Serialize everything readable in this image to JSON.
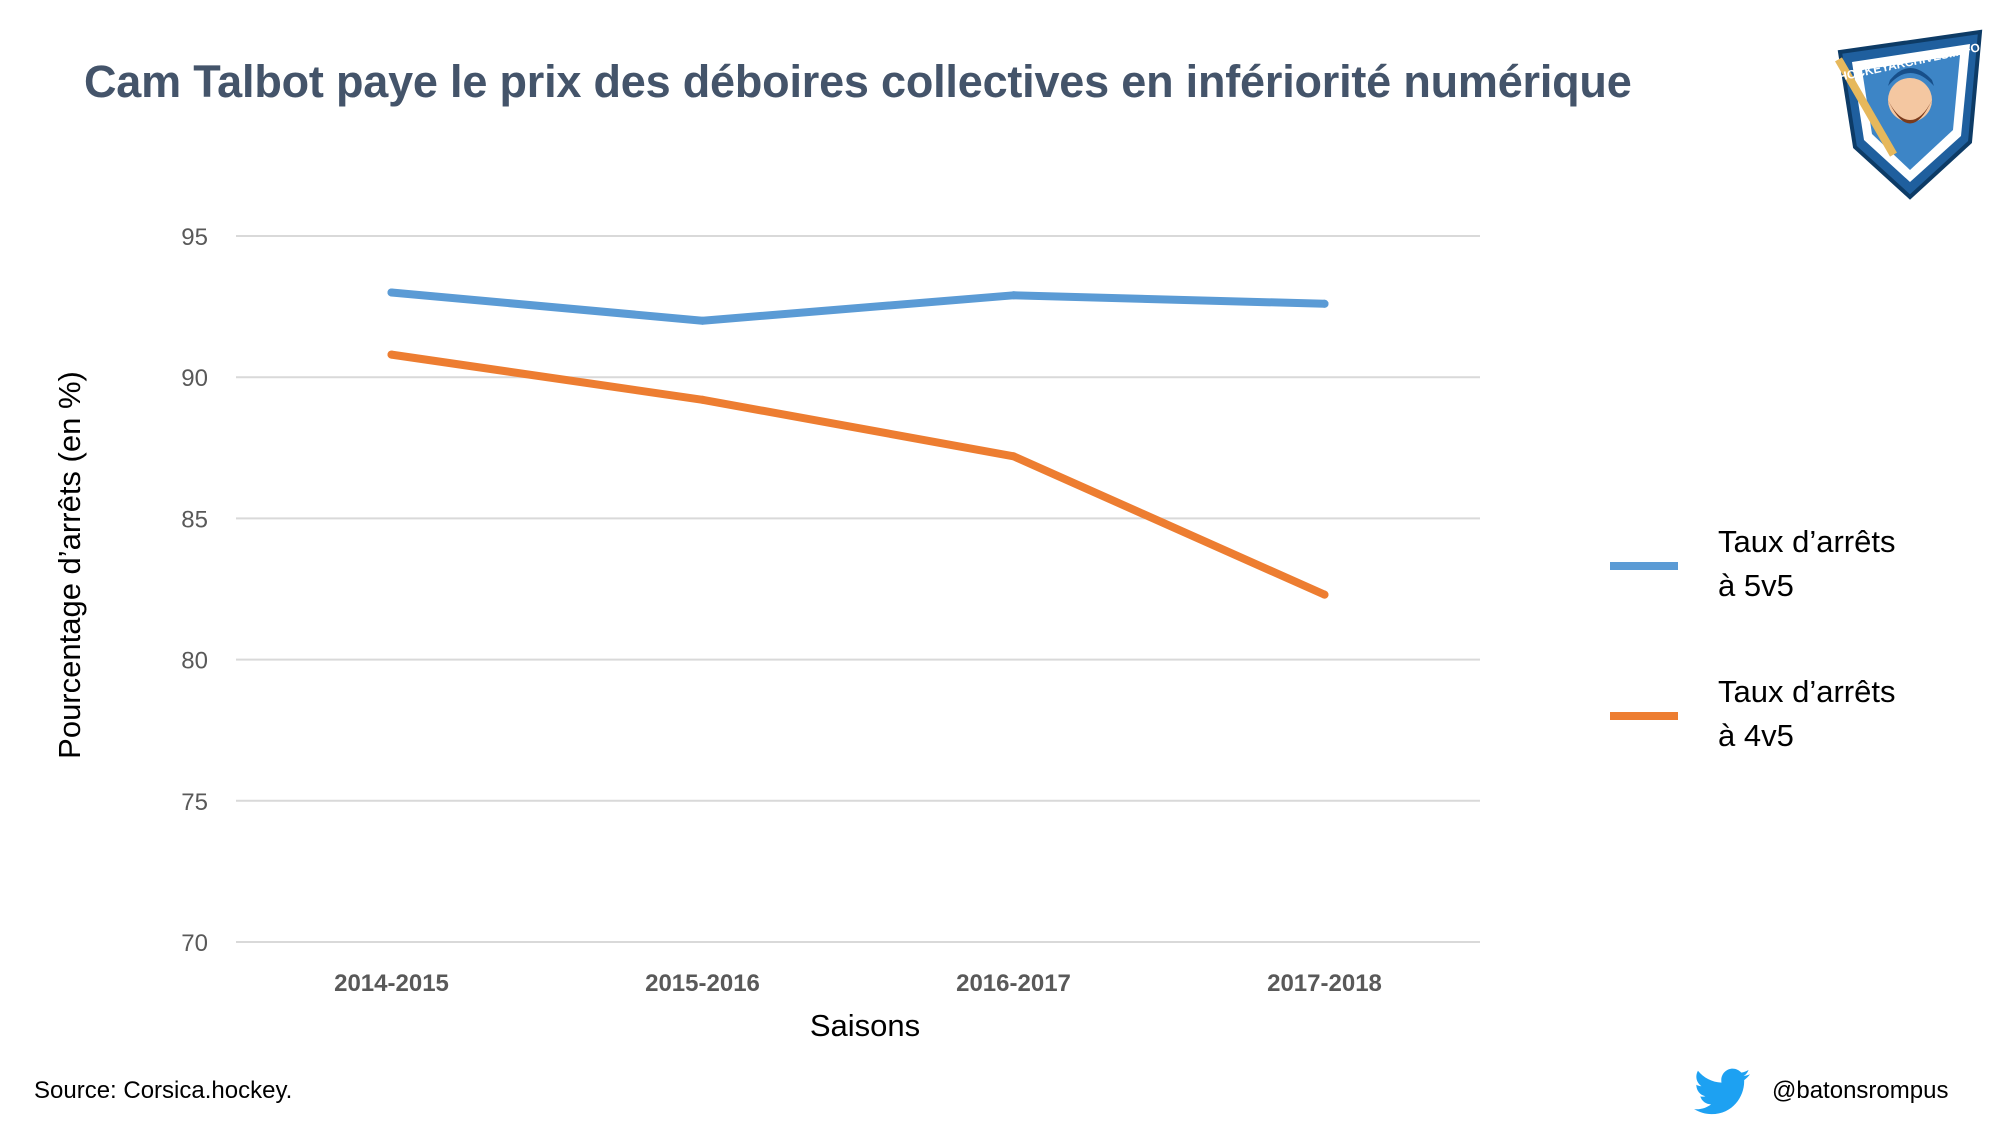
{
  "title": "Cam Talbot paye le prix des déboires collectives en infériorité numérique",
  "source": "Source: Corsica.hockey.",
  "twitter_handle": "@batonsrompus",
  "logo_text": "HOCKEYARCHIVES.INFO",
  "colors": {
    "series_5v5": "#5b9bd5",
    "series_4v5": "#ed7d31",
    "grid": "#d9d9d9",
    "title": "#44546a",
    "tick": "#595959",
    "twitter": "#1da1f2"
  },
  "chart_data": {
    "type": "line",
    "xlabel": "Saisons",
    "ylabel": "Pourcentage d’arrêts (en %)",
    "categories": [
      "2014-2015",
      "2015-2016",
      "2016-2017",
      "2017-2018"
    ],
    "ylim": [
      70,
      95
    ],
    "yticks": [
      70,
      75,
      80,
      85,
      90,
      95
    ],
    "grid": true,
    "legend_position": "right",
    "series": [
      {
        "name": "Taux d’arrêts à 5v5",
        "name_lines": [
          "Taux d’arrêts",
          "à 5v5"
        ],
        "color": "#5b9bd5",
        "values": [
          93.0,
          92.0,
          92.9,
          92.6
        ]
      },
      {
        "name": "Taux d’arrêts à 4v5",
        "name_lines": [
          "Taux d’arrêts",
          "à 4v5"
        ],
        "color": "#ed7d31",
        "values": [
          90.8,
          89.2,
          87.2,
          82.3
        ]
      }
    ]
  }
}
